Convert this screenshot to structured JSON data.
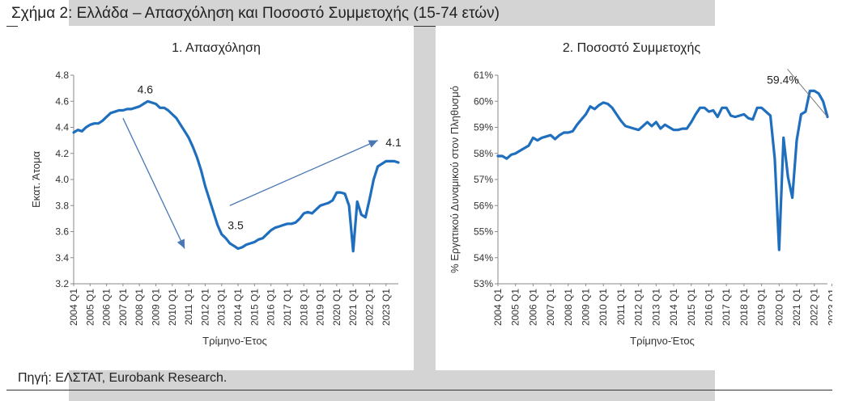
{
  "figure": {
    "title": "Σχήμα 2: Ελλάδα – Απασχόληση και Ποσοστό Συμμετοχής (15-74 ετών)",
    "source": "Πηγή: ΕΛΣΤΑΤ, Eurobank Research."
  },
  "colors": {
    "line": "#1f6fbe",
    "arrow": "#4a78b5",
    "axis": "#8a8a8a",
    "background": "#d4d4d4"
  },
  "chart_data": [
    {
      "type": "line",
      "title": "1. Απασχόληση",
      "xlabel": "Τρίμηνο-Έτος",
      "ylabel": "Εκατ. Άτομα",
      "ylim": [
        3.2,
        4.8
      ],
      "yticks": [
        "3.2",
        "3.4",
        "3.6",
        "3.8",
        "4.0",
        "4.2",
        "4.4",
        "4.6",
        "4.8"
      ],
      "x_labels": [
        "2004 Q1",
        "2005 Q1",
        "2006 Q1",
        "2007 Q1",
        "2008 Q1",
        "2009 Q1",
        "2010 Q1",
        "2011 Q1",
        "2012 Q1",
        "2013 Q1",
        "2014 Q1",
        "2015 Q1",
        "2016 Q1",
        "2017 Q1",
        "2018 Q1",
        "2019 Q1",
        "2020 Q1",
        "2021 Q1",
        "2022 Q1",
        "2023 Q1"
      ],
      "series": [
        {
          "values": [
            4.36,
            4.38,
            4.37,
            4.4,
            4.42,
            4.43,
            4.43,
            4.45,
            4.48,
            4.51,
            4.52,
            4.53,
            4.53,
            4.54,
            4.54,
            4.55,
            4.56,
            4.58,
            4.6,
            4.59,
            4.58,
            4.55,
            4.55,
            4.53,
            4.5,
            4.47,
            4.42,
            4.37,
            4.32,
            4.25,
            4.17,
            4.07,
            3.95,
            3.85,
            3.75,
            3.65,
            3.58,
            3.55,
            3.51,
            3.49,
            3.47,
            3.48,
            3.5,
            3.51,
            3.52,
            3.54,
            3.55,
            3.58,
            3.61,
            3.63,
            3.64,
            3.65,
            3.66,
            3.66,
            3.67,
            3.7,
            3.74,
            3.75,
            3.74,
            3.77,
            3.8,
            3.81,
            3.82,
            3.84,
            3.9,
            3.9,
            3.89,
            3.8,
            3.45,
            3.83,
            3.73,
            3.71,
            3.85,
            4.0,
            4.1,
            4.12,
            4.14,
            4.14,
            4.14,
            4.13
          ]
        }
      ],
      "annotations": [
        {
          "text": "4.6",
          "x_index": 18,
          "y": 4.6
        },
        {
          "text": "3.5",
          "x_index": 40,
          "y": 3.47
        },
        {
          "text": "4.1",
          "x_index": 79,
          "y": 4.13
        }
      ]
    },
    {
      "type": "line",
      "title": "2. Ποσοστό Συμμετοχής",
      "xlabel": "Τρίμηνο-Έτος",
      "ylabel": "% Εργατικού Δυναμικού στον Πληθυσμό",
      "ylim": [
        53,
        61
      ],
      "yticks": [
        "53%",
        "54%",
        "55%",
        "56%",
        "57%",
        "58%",
        "59%",
        "60%",
        "61%"
      ],
      "x_labels": [
        "2004 Q1",
        "2005 Q1",
        "2006 Q1",
        "2007 Q1",
        "2008 Q1",
        "2009 Q1",
        "2010 Q1",
        "2011 Q1",
        "2012 Q1",
        "2013 Q1",
        "2014 Q1",
        "2015 Q1",
        "2016 Q1",
        "2017 Q1",
        "2018 Q1",
        "2019 Q1",
        "2020 Q1",
        "2021 Q1",
        "2022 Q1",
        "2023 Q1"
      ],
      "series": [
        {
          "values": [
            57.9,
            57.9,
            57.8,
            57.95,
            58.0,
            58.1,
            58.2,
            58.3,
            58.6,
            58.5,
            58.6,
            58.65,
            58.7,
            58.55,
            58.7,
            58.8,
            58.8,
            58.85,
            59.1,
            59.3,
            59.5,
            59.8,
            59.7,
            59.85,
            59.95,
            59.9,
            59.75,
            59.5,
            59.25,
            59.05,
            59.0,
            58.95,
            58.9,
            59.05,
            59.2,
            59.05,
            59.2,
            58.95,
            59.1,
            59.0,
            58.9,
            58.9,
            58.95,
            58.95,
            59.2,
            59.5,
            59.75,
            59.75,
            59.6,
            59.65,
            59.4,
            59.75,
            59.75,
            59.45,
            59.4,
            59.45,
            59.5,
            59.35,
            59.3,
            59.75,
            59.75,
            59.6,
            59.45,
            57.8,
            54.3,
            58.6,
            57.1,
            56.3,
            58.5,
            59.5,
            59.6,
            60.4,
            60.4,
            60.3,
            60.0,
            59.4
          ]
        }
      ],
      "annotations": [
        {
          "text": "59.4%",
          "x_index": 75,
          "y": 59.4
        }
      ]
    }
  ]
}
